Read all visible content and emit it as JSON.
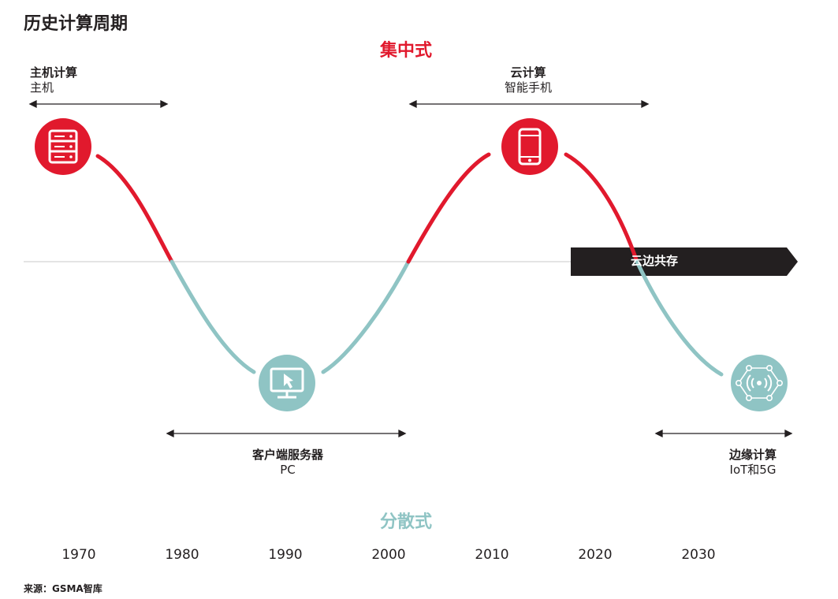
{
  "title": "历史计算周期",
  "modes": {
    "centralized": "集中式",
    "distributed": "分散式"
  },
  "eras": {
    "mainframe": {
      "name": "主机计算",
      "device": "主机",
      "icon": "server-icon"
    },
    "client_server": {
      "name": "客户端服务器",
      "device": "PC",
      "icon": "monitor-cursor-icon"
    },
    "cloud": {
      "name": "云计算",
      "device": "智能手机",
      "icon": "smartphone-icon"
    },
    "edge": {
      "name": "边缘计算",
      "device": "IoT和5G",
      "icon": "iot-network-icon"
    }
  },
  "coexistence_label": "云边共存",
  "years": [
    "1970",
    "1980",
    "1990",
    "2000",
    "2010",
    "2020",
    "2030"
  ],
  "source": "来源：GSMA智库",
  "colors": {
    "centralized": "#e1192d",
    "distributed": "#8fc4c4",
    "banner": "#231f20",
    "axis": "#bdbdbd"
  }
}
